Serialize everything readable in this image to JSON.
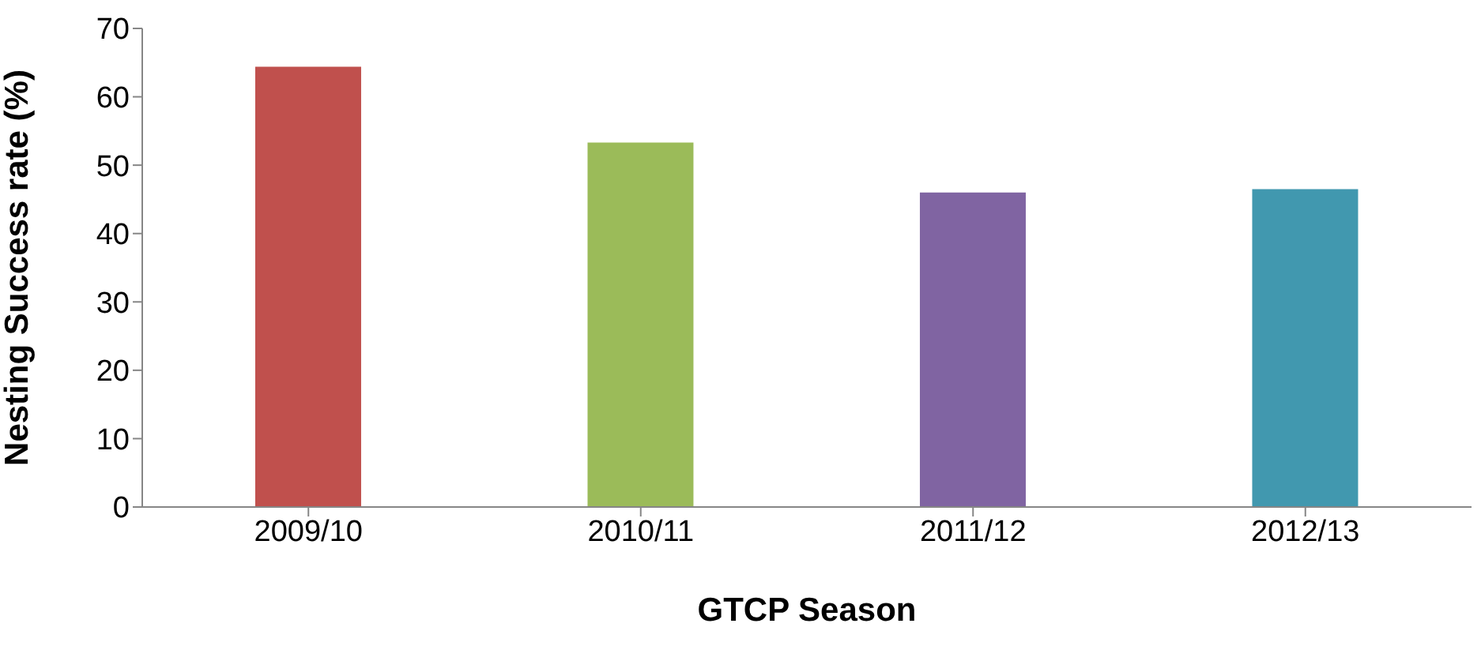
{
  "chart_data": {
    "type": "bar",
    "xlabel": "GTCP Season",
    "ylabel": "Nesting Success rate (%)",
    "categories": [
      "2009/10",
      "2010/11",
      "2011/12",
      "2012/13"
    ],
    "values": [
      64.4,
      53.3,
      46,
      46.5
    ],
    "colors": [
      "#c0504d",
      "#9bbb59",
      "#8064a2",
      "#4198af"
    ],
    "ylim": [
      0,
      70
    ],
    "yticks": [
      0,
      10,
      20,
      30,
      40,
      50,
      60,
      70
    ],
    "grid": false
  }
}
